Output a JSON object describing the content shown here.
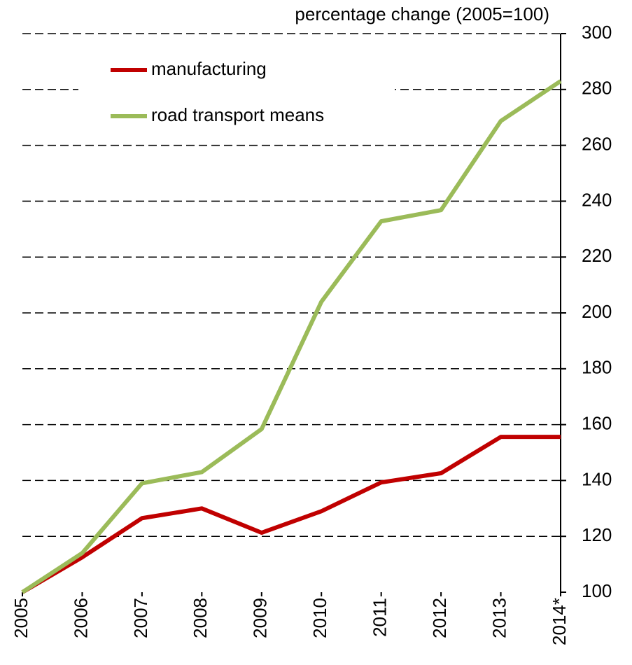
{
  "chart_data": {
    "type": "line",
    "y_axis_label": "percentage change (2005=100)",
    "categories": [
      "2005",
      "2006",
      "2007",
      "2008",
      "2009",
      "2010",
      "2011",
      "2012",
      "2013",
      "2014*"
    ],
    "series": [
      {
        "name": "manufacturing",
        "color": "#c00000",
        "values": [
          100,
          112.5,
          126.5,
          130,
          121.3,
          129,
          139.3,
          142.6,
          155.6,
          155.6
        ]
      },
      {
        "name": "road transport means",
        "color": "#9bbb59",
        "values": [
          100,
          114,
          139,
          143,
          158.4,
          204,
          232.8,
          236.8,
          268.7,
          283
        ]
      }
    ],
    "ylim": [
      100,
      300
    ],
    "yticks": [
      100,
      120,
      140,
      160,
      180,
      200,
      220,
      240,
      260,
      280,
      300
    ],
    "grid": true,
    "legend": "upper left"
  }
}
